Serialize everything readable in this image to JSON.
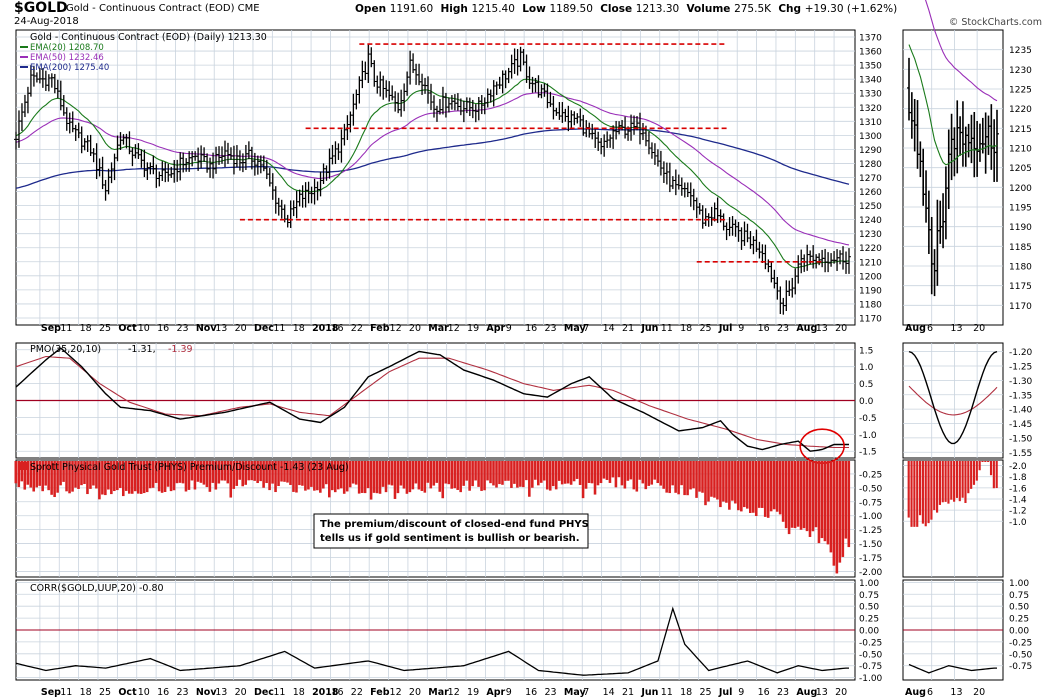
{
  "header": {
    "symbol": "$GOLD",
    "description": "Gold - Continuous Contract (EOD) CME",
    "date": "24-Aug-2018",
    "open_label": "Open",
    "open": "1191.60",
    "high_label": "High",
    "high": "1215.40",
    "low_label": "Low",
    "low": "1189.50",
    "close_label": "Close",
    "close": "1213.30",
    "volume_label": "Volume",
    "volume": "275.5K",
    "chg_label": "Chg",
    "chg": "+19.30 (+1.62%)",
    "credit": "© StockCharts.com"
  },
  "colors": {
    "ema20": "#1a7a1a",
    "ema50": "#9a2fb8",
    "ema200": "#1e2a8c",
    "pmo": "#000000",
    "pmo_signal": "#b03040",
    "zero_line": "#a00020",
    "support_lines": "#d80000",
    "bars": "#d82020",
    "annotation_circle": "#e00000",
    "grid": "#c9d3de"
  },
  "chart_data": [
    {
      "type": "line",
      "title": "Gold - Continuous Contract (EOD) (Daily) 1213.30",
      "legend": [
        {
          "name": "EMA(20) 1208.70",
          "color": "#1a7a1a"
        },
        {
          "name": "EMA(50) 1232.46",
          "color": "#9a2fb8"
        },
        {
          "name": "EMA(200) 1275.40",
          "color": "#1e2a8c"
        }
      ],
      "x_ticks": [
        "Sep",
        "11",
        "18",
        "25",
        "Oct",
        "10",
        "16",
        "23",
        "Nov",
        "13",
        "20",
        "Dec",
        "11",
        "18",
        "2018",
        "16",
        "22",
        "Feb",
        "12",
        "20",
        "Mar",
        "12",
        "19",
        "Apr",
        "9",
        "16",
        "23",
        "May",
        "7",
        "14",
        "21",
        "Jun",
        "11",
        "18",
        "25",
        "Jul",
        "9",
        "16",
        "23",
        "Aug",
        "13",
        "20"
      ],
      "ylim": [
        1165,
        1375
      ],
      "y_ticks": [
        1170,
        1180,
        1190,
        1200,
        1210,
        1220,
        1230,
        1240,
        1250,
        1260,
        1270,
        1280,
        1290,
        1300,
        1310,
        1320,
        1330,
        1340,
        1350,
        1360,
        1370
      ],
      "price_path": [
        [
          0,
          1300
        ],
        [
          5,
          1340
        ],
        [
          12,
          1340
        ],
        [
          18,
          1305
        ],
        [
          25,
          1290
        ],
        [
          30,
          1262
        ],
        [
          35,
          1300
        ],
        [
          40,
          1285
        ],
        [
          45,
          1275
        ],
        [
          50,
          1270
        ],
        [
          55,
          1280
        ],
        [
          60,
          1285
        ],
        [
          65,
          1278
        ],
        [
          70,
          1288
        ],
        [
          75,
          1282
        ],
        [
          78,
          1285
        ],
        [
          82,
          1280
        ],
        [
          85,
          1265
        ],
        [
          88,
          1250
        ],
        [
          91,
          1240
        ],
        [
          95,
          1255
        ],
        [
          100,
          1262
        ],
        [
          105,
          1280
        ],
        [
          110,
          1300
        ],
        [
          115,
          1335
        ],
        [
          118,
          1355
        ],
        [
          120,
          1340
        ],
        [
          124,
          1330
        ],
        [
          128,
          1320
        ],
        [
          132,
          1350
        ],
        [
          136,
          1340
        ],
        [
          140,
          1320
        ],
        [
          145,
          1325
        ],
        [
          150,
          1320
        ],
        [
          155,
          1320
        ],
        [
          160,
          1335
        ],
        [
          165,
          1345
        ],
        [
          169,
          1355
        ],
        [
          172,
          1340
        ],
        [
          176,
          1330
        ],
        [
          180,
          1320
        ],
        [
          184,
          1312
        ],
        [
          188,
          1312
        ],
        [
          192,
          1300
        ],
        [
          196,
          1290
        ],
        [
          200,
          1302
        ],
        [
          205,
          1305
        ],
        [
          210,
          1305
        ],
        [
          214,
          1285
        ],
        [
          218,
          1270
        ],
        [
          222,
          1260
        ],
        [
          226,
          1258
        ],
        [
          230,
          1240
        ],
        [
          234,
          1245
        ],
        [
          238,
          1235
        ],
        [
          242,
          1230
        ],
        [
          246,
          1225
        ],
        [
          250,
          1218
        ],
        [
          254,
          1195
        ],
        [
          257,
          1180
        ],
        [
          260,
          1194
        ],
        [
          263,
          1213
        ]
      ],
      "support_lines": [
        {
          "price": 1365,
          "from": 115,
          "to": 238
        },
        {
          "price": 1305,
          "from": 97,
          "to": 238
        },
        {
          "price": 1240,
          "from": 75,
          "to": 238
        },
        {
          "price": 1210,
          "from": 228,
          "to": 263
        }
      ]
    },
    {
      "type": "line",
      "title": "PMO(35,20,10) -1.31, -1.39",
      "series": [
        {
          "name": "-1.31"
        },
        {
          "name": "-1.39"
        }
      ],
      "ylim": [
        -1.7,
        1.7
      ],
      "y_ticks": [
        1.5,
        1.0,
        0.5,
        0.0,
        -0.5,
        -1.0,
        -1.5
      ],
      "pmo": [
        [
          0,
          0.4
        ],
        [
          10,
          1.2
        ],
        [
          15,
          1.55
        ],
        [
          22,
          1.0
        ],
        [
          30,
          0.2
        ],
        [
          35,
          -0.2
        ],
        [
          45,
          -0.3
        ],
        [
          55,
          -0.55
        ],
        [
          70,
          -0.35
        ],
        [
          85,
          -0.05
        ],
        [
          95,
          -0.55
        ],
        [
          102,
          -0.65
        ],
        [
          110,
          -0.2
        ],
        [
          118,
          0.7
        ],
        [
          125,
          1.0
        ],
        [
          135,
          1.45
        ],
        [
          142,
          1.35
        ],
        [
          150,
          0.9
        ],
        [
          160,
          0.6
        ],
        [
          170,
          0.2
        ],
        [
          178,
          0.1
        ],
        [
          186,
          0.5
        ],
        [
          192,
          0.7
        ],
        [
          200,
          0.05
        ],
        [
          210,
          -0.35
        ],
        [
          222,
          -0.9
        ],
        [
          230,
          -0.8
        ],
        [
          236,
          -0.6
        ],
        [
          240,
          -1.0
        ],
        [
          245,
          -1.35
        ],
        [
          250,
          -1.45
        ],
        [
          256,
          -1.3
        ],
        [
          262,
          -1.2
        ],
        [
          266,
          -1.5
        ],
        [
          270,
          -1.45
        ],
        [
          274,
          -1.3
        ]
      ],
      "signal": [
        [
          0,
          1.0
        ],
        [
          10,
          1.3
        ],
        [
          18,
          1.25
        ],
        [
          28,
          0.5
        ],
        [
          38,
          -0.05
        ],
        [
          50,
          -0.4
        ],
        [
          62,
          -0.45
        ],
        [
          75,
          -0.2
        ],
        [
          85,
          -0.1
        ],
        [
          95,
          -0.35
        ],
        [
          105,
          -0.45
        ],
        [
          115,
          0.2
        ],
        [
          125,
          0.85
        ],
        [
          135,
          1.25
        ],
        [
          145,
          1.25
        ],
        [
          158,
          0.9
        ],
        [
          170,
          0.5
        ],
        [
          180,
          0.3
        ],
        [
          192,
          0.45
        ],
        [
          200,
          0.3
        ],
        [
          212,
          -0.15
        ],
        [
          225,
          -0.55
        ],
        [
          238,
          -0.85
        ],
        [
          248,
          -1.15
        ],
        [
          258,
          -1.3
        ],
        [
          266,
          -1.35
        ],
        [
          274,
          -1.39
        ]
      ]
    },
    {
      "type": "bar",
      "title": "Sprott Physical Gold Trust (PHYS) Premium/Discount -1.43 (23 Aug)",
      "ylim": [
        -2.1,
        0.0
      ],
      "y_ticks": [
        -0.25,
        -0.5,
        -0.75,
        -1.0,
        -1.25,
        -1.5,
        -1.75,
        -2.0
      ],
      "annotation": "The premium/discount of closed-end fund PHYS tells us if gold sentiment is bullish or bearish.",
      "discount_path": [
        [
          0,
          -0.45
        ],
        [
          20,
          -0.5
        ],
        [
          40,
          -0.55
        ],
        [
          60,
          -0.45
        ],
        [
          80,
          -0.45
        ],
        [
          100,
          -0.5
        ],
        [
          120,
          -0.5
        ],
        [
          140,
          -0.5
        ],
        [
          160,
          -0.45
        ],
        [
          180,
          -0.45
        ],
        [
          200,
          -0.4
        ],
        [
          215,
          -0.45
        ],
        [
          225,
          -0.55
        ],
        [
          235,
          -0.75
        ],
        [
          245,
          -0.9
        ],
        [
          255,
          -1.0
        ],
        [
          262,
          -1.15
        ],
        [
          268,
          -1.3
        ],
        [
          272,
          -1.55
        ],
        [
          275,
          -1.95
        ],
        [
          278,
          -1.45
        ]
      ]
    },
    {
      "type": "line",
      "title": "CORR($GOLD,UUP,20) -0.80",
      "ylim": [
        -1.05,
        1.05
      ],
      "y_ticks": [
        1.0,
        0.75,
        0.5,
        0.25,
        0.0,
        -0.25,
        -0.5,
        -0.75,
        -1.0
      ],
      "corr": [
        [
          0,
          -0.7
        ],
        [
          10,
          -0.85
        ],
        [
          20,
          -0.75
        ],
        [
          30,
          -0.8
        ],
        [
          45,
          -0.6
        ],
        [
          55,
          -0.85
        ],
        [
          75,
          -0.75
        ],
        [
          90,
          -0.45
        ],
        [
          100,
          -0.8
        ],
        [
          118,
          -0.65
        ],
        [
          130,
          -0.85
        ],
        [
          150,
          -0.75
        ],
        [
          165,
          -0.45
        ],
        [
          175,
          -0.85
        ],
        [
          190,
          -0.95
        ],
        [
          205,
          -0.9
        ],
        [
          215,
          -0.65
        ],
        [
          220,
          0.45
        ],
        [
          224,
          -0.3
        ],
        [
          232,
          -0.85
        ],
        [
          245,
          -0.65
        ],
        [
          255,
          -0.9
        ],
        [
          262,
          -0.75
        ],
        [
          270,
          -0.85
        ],
        [
          278,
          -0.8
        ]
      ]
    }
  ],
  "inset_x_ticks": [
    "Aug",
    "6",
    "13",
    "20"
  ],
  "inset_price_ticks": [
    1170,
    1175,
    1180,
    1185,
    1190,
    1195,
    1200,
    1205,
    1210,
    1215,
    1220,
    1225,
    1230,
    1235
  ],
  "inset_pmo_ticks": [
    -1.2,
    -1.25,
    -1.3,
    -1.35,
    -1.4,
    -1.45,
    -1.5,
    -1.55
  ],
  "inset_prem_ticks": [
    -1.0,
    -1.2,
    -1.4,
    -1.6,
    -1.8,
    -2.0
  ],
  "inset_corr_ticks": [
    1.0,
    0.75,
    0.5,
    0.25,
    0.0,
    -0.25,
    -0.5,
    -0.75
  ]
}
